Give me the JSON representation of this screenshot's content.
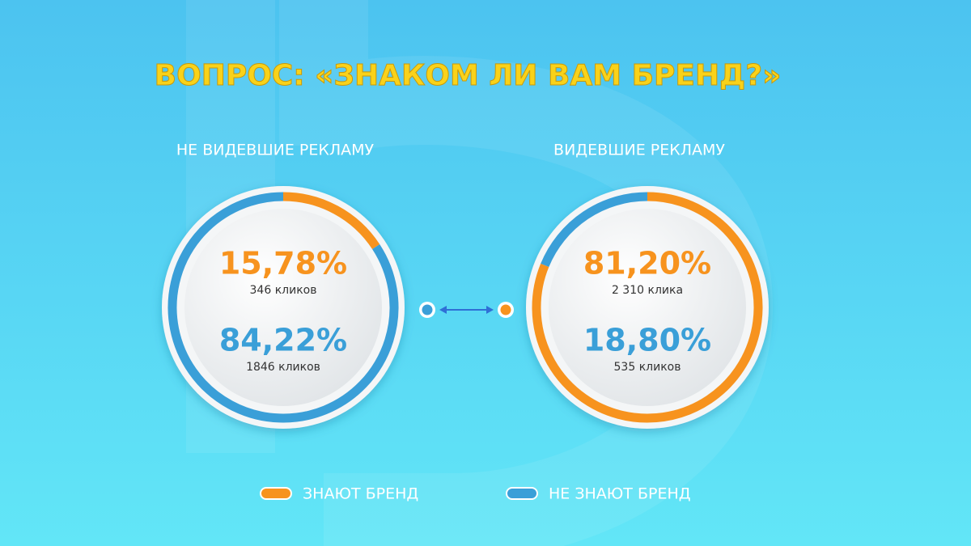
{
  "title": "ВОПРОС: «ЗНАКОМ ЛИ ВАМ БРЕНД?»",
  "chart_data": [
    {
      "type": "donut",
      "title": "НЕ ВИДЕВШИЕ РЕКЛАМУ",
      "categories": [
        "ЗНАЮТ БРЕНД",
        "НЕ ЗНАЮТ БРЕНД"
      ],
      "values": [
        15.78,
        84.22
      ],
      "value_labels": [
        "15,78%",
        "84,22%"
      ],
      "counts": [
        "346 кликов",
        "1846 кликов"
      ],
      "colors": [
        "#f7931e",
        "#3a9fd8"
      ]
    },
    {
      "type": "donut",
      "title": "ВИДЕВШИЕ РЕКЛАМУ",
      "categories": [
        "ЗНАЮТ БРЕНД",
        "НЕ ЗНАЮТ БРЕНД"
      ],
      "values": [
        81.2,
        18.8
      ],
      "value_labels": [
        "81,20%",
        "18,80%"
      ],
      "counts": [
        "2 310 клика",
        "535 кликов"
      ],
      "colors": [
        "#f7931e",
        "#3a9fd8"
      ]
    }
  ]
}
